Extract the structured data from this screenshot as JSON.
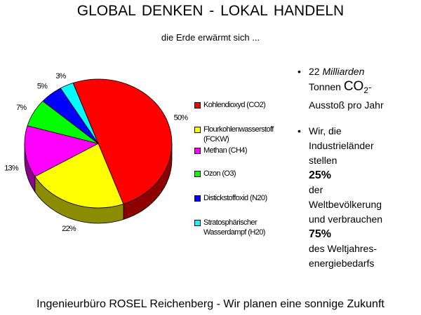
{
  "chart_data": {
    "type": "pie",
    "title": "GLOBAL DENKEN  -  LOKAL HANDELN",
    "subtitle": "die Erde erwärmt sich ...",
    "categories": [
      "Kohlendioxyd (CO2)",
      "Flourkohlenwasserstoff (FCKW)",
      "Methan (CH4)",
      "Ozon (O3)",
      "Distickstoffoxid (N20)",
      "Stratosphärischer Wasserdampf (H20)"
    ],
    "values": [
      50,
      22,
      13,
      7,
      5,
      3
    ],
    "value_labels": [
      "50%",
      "22%",
      "13%",
      "7%",
      "5%",
      "3%"
    ],
    "colors": [
      "#ff0000",
      "#ffff00",
      "#ff00ff",
      "#00ff00",
      "#0000ff",
      "#00ffff"
    ],
    "legend": "right"
  },
  "bullets": [
    [
      "22",
      "Milliarden",
      "Tonnen",
      "CO",
      "2",
      "-Ausstoß pro Jahr"
    ],
    [
      "Wir, die Industrieländer stellen",
      "25%",
      "der Weltbevölkerung und verbrauchen",
      "75%",
      "des Weltjahres-energiebedarfs"
    ]
  ],
  "footer": "Ingenieurbüro ROSEL Reichenberg - Wir planen eine sonnige Zukunft"
}
